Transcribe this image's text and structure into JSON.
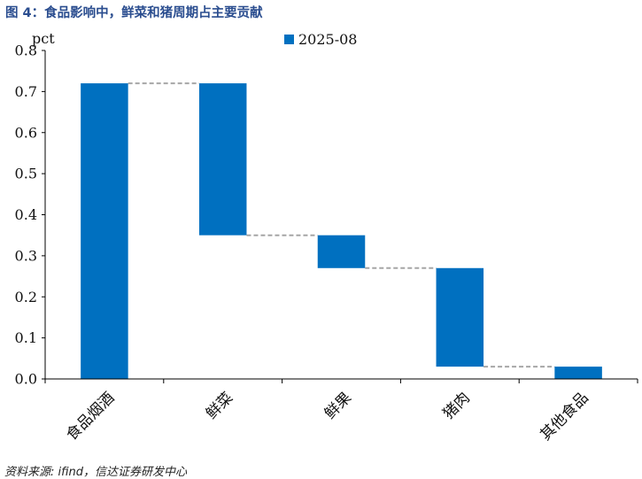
{
  "title": "图 4：食品影响中，鲜菜和猪周期占主要贡献",
  "source": "资料来源: ifind，信达证券研发中心",
  "chart_data": {
    "type": "bar",
    "subtype": "waterfall",
    "unit": "pct",
    "ylim": [
      0,
      0.8
    ],
    "yticks": [
      "0.0",
      "0.1",
      "0.2",
      "0.3",
      "0.4",
      "0.5",
      "0.6",
      "0.7",
      "0.8"
    ],
    "legend": {
      "label": "2025-08",
      "placement": "top-center"
    },
    "color": "#0070c0",
    "connector_color": "#a6a6a6",
    "grid": false,
    "categories": [
      "食品烟酒",
      "鲜菜",
      "鲜果",
      "猪肉",
      "其他食品"
    ],
    "bars": [
      {
        "label": "食品烟酒",
        "bottom": 0.0,
        "top": 0.72
      },
      {
        "label": "鲜菜",
        "bottom": 0.35,
        "top": 0.72
      },
      {
        "label": "鲜果",
        "bottom": 0.27,
        "top": 0.35
      },
      {
        "label": "猪肉",
        "bottom": 0.03,
        "top": 0.27
      },
      {
        "label": "其他食品",
        "bottom": 0.0,
        "top": 0.03
      }
    ]
  }
}
